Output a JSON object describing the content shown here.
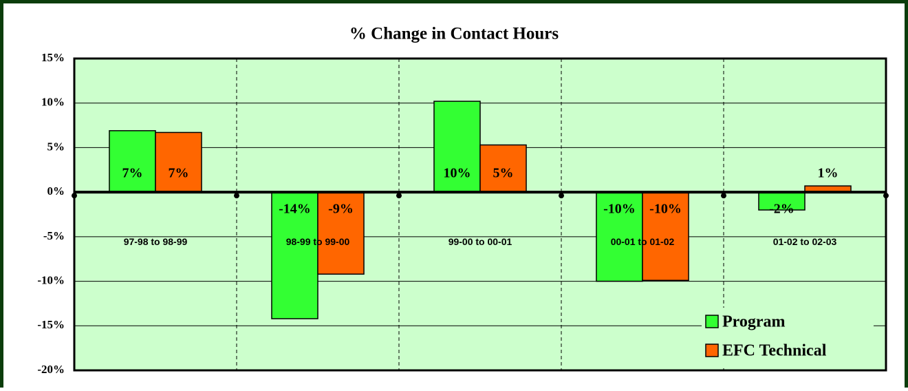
{
  "chart_data": {
    "type": "bar",
    "title": "% Change in Contact Hours",
    "categories": [
      "97-98 to 98-99",
      "98-99 to 99-00",
      "99-00 to 00-01",
      "00-01 to 01-02",
      "01-02 to 02-03"
    ],
    "series": [
      {
        "name": "Program",
        "color": "#33ff33",
        "values": [
          6.9,
          -14.2,
          10.2,
          -10.0,
          -2.0
        ],
        "value_labels": [
          "7%",
          "-14%",
          "10%",
          "-10%",
          "-2%"
        ]
      },
      {
        "name": "EFC Technical",
        "color": "#ff6600",
        "values": [
          6.7,
          -9.2,
          5.3,
          -9.9,
          0.7
        ],
        "value_labels": [
          "7%",
          "-9%",
          "5%",
          "-10%",
          "1%"
        ]
      }
    ],
    "ylim": [
      -20,
      15
    ],
    "yticks": [
      {
        "value": -20,
        "label": "-20%"
      },
      {
        "value": -15,
        "label": "-15%"
      },
      {
        "value": -10,
        "label": "-10%"
      },
      {
        "value": -5,
        "label": "-5%"
      },
      {
        "value": 0,
        "label": "0%"
      },
      {
        "value": 5,
        "label": "5%"
      },
      {
        "value": 10,
        "label": "10%"
      },
      {
        "value": 15,
        "label": "15%"
      }
    ],
    "grid": true,
    "legend": "lower right"
  }
}
